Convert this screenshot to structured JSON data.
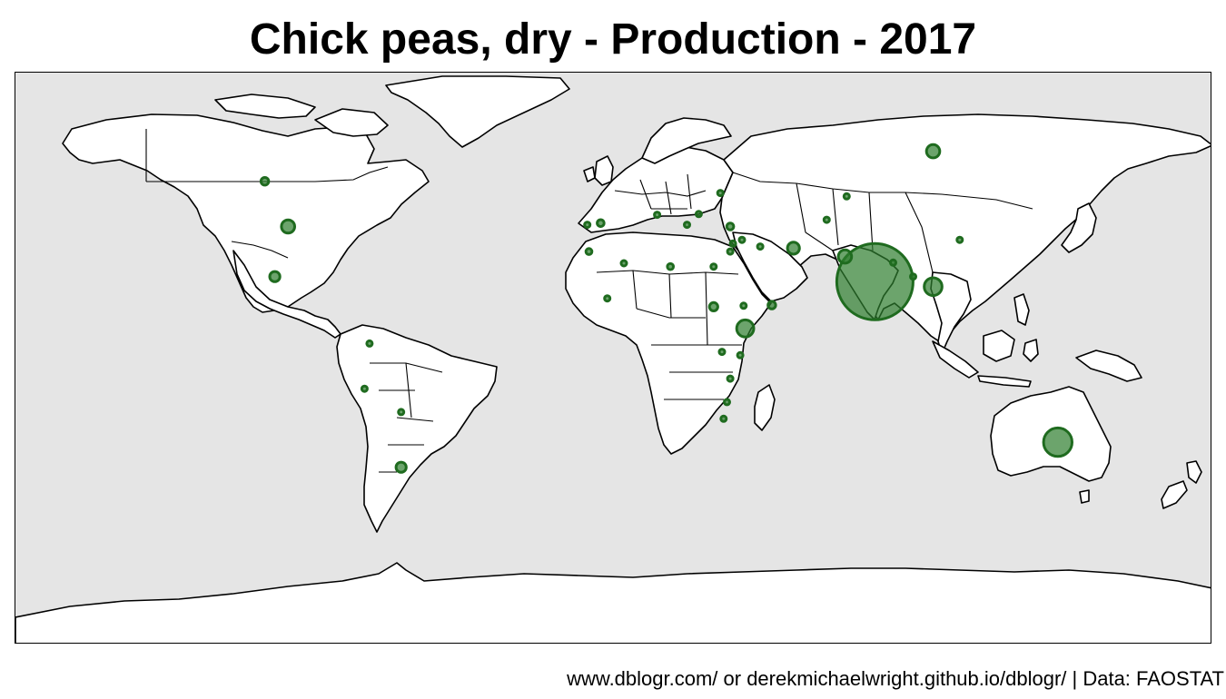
{
  "title": "Chick peas, dry - Production - 2017",
  "caption": "www.dblogr.com/ or derekmichaelwright.github.io/dblogr/ | Data: FAOSTAT",
  "colors": {
    "panel_background": "#e5e5e5",
    "land": "#ffffff",
    "outline": "#000000",
    "bubble_fill": "#2e7d2e",
    "bubble_stroke": "#1f6b1f"
  },
  "bubbles": [
    {
      "region": "India",
      "lon": 78.5,
      "lat": 22.5,
      "value": 100
    },
    {
      "region": "Australia",
      "lon": 133.5,
      "lat": -25.5,
      "value": 14
    },
    {
      "region": "Myanmar",
      "lon": 96.0,
      "lat": 21.0,
      "value": 5.5
    },
    {
      "region": "Ethiopia",
      "lon": 39.5,
      "lat": 8.5,
      "value": 5
    },
    {
      "region": "Pakistan",
      "lon": 69.5,
      "lat": 30.0,
      "value": 3
    },
    {
      "region": "Russia",
      "lon": 96.0,
      "lat": 61.5,
      "value": 3
    },
    {
      "region": "United States",
      "lon": -98.0,
      "lat": 39.0,
      "value": 3
    },
    {
      "region": "Iran",
      "lon": 54.0,
      "lat": 32.5,
      "value": 2.5
    },
    {
      "region": "Mexico",
      "lon": -102.0,
      "lat": 24.0,
      "value": 1.8
    },
    {
      "region": "Argentina",
      "lon": -64.0,
      "lat": -33.0,
      "value": 1.8
    },
    {
      "region": "Sudan",
      "lon": 30.0,
      "lat": 15.0,
      "value": 1.2
    },
    {
      "region": "Canada",
      "lon": -105.0,
      "lat": 52.5,
      "value": 1.0
    },
    {
      "region": "Yemen",
      "lon": 47.5,
      "lat": 15.5,
      "value": 1.0
    },
    {
      "region": "Spain",
      "lon": -4.0,
      "lat": 40.0,
      "value": 0.8
    },
    {
      "region": "Turkey",
      "lon": 35.0,
      "lat": 39.0,
      "value": 0.8
    },
    {
      "region": "Morocco",
      "lon": -7.5,
      "lat": 31.5,
      "value": 0.6
    },
    {
      "region": "Libya",
      "lon": 17.0,
      "lat": 27.0,
      "value": 0.6
    },
    {
      "region": "Syria",
      "lon": 38.5,
      "lat": 35.0,
      "value": 0.5
    },
    {
      "region": "Bangladesh",
      "lon": 90.0,
      "lat": 24.0,
      "value": 0.5
    },
    {
      "region": "Italy",
      "lon": 13.0,
      "lat": 42.5,
      "value": 0.4
    },
    {
      "region": "Bulgaria",
      "lon": 25.5,
      "lat": 42.7,
      "value": 0.4
    },
    {
      "region": "Ukraine",
      "lon": 32.0,
      "lat": 49.0,
      "value": 0.4
    },
    {
      "region": "Israel",
      "lon": 35.0,
      "lat": 31.5,
      "value": 0.4
    },
    {
      "region": "Tanzania",
      "lon": 35.0,
      "lat": -6.5,
      "value": 0.5
    },
    {
      "region": "Malawi",
      "lon": 34.0,
      "lat": -13.5,
      "value": 0.4
    },
    {
      "region": "Kazakhstan",
      "lon": 70.0,
      "lat": 48.0,
      "value": 0.3
    },
    {
      "region": "Uzbekistan",
      "lon": 64.0,
      "lat": 41.0,
      "value": 0.3
    },
    {
      "region": "China",
      "lon": 104.0,
      "lat": 35.0,
      "value": 0.3
    },
    {
      "region": "Nepal",
      "lon": 84.0,
      "lat": 28.2,
      "value": 0.3
    },
    {
      "region": "Egypt",
      "lon": 30.0,
      "lat": 27.0,
      "value": 0.3
    },
    {
      "region": "Algeria",
      "lon": 3.0,
      "lat": 28.0,
      "value": 0.3
    },
    {
      "region": "Mali",
      "lon": -2.0,
      "lat": 17.5,
      "value": 0.3
    },
    {
      "region": "Kenya",
      "lon": 38.0,
      "lat": 0.5,
      "value": 0.3
    },
    {
      "region": "Uganda",
      "lon": 32.5,
      "lat": 1.5,
      "value": 0.3
    },
    {
      "region": "Lebanon",
      "lon": 35.8,
      "lat": 33.9,
      "value": 0.3
    },
    {
      "region": "Iraq",
      "lon": 44.0,
      "lat": 33.0,
      "value": 0.3
    },
    {
      "region": "Peru",
      "lon": -75.0,
      "lat": -9.5,
      "value": 0.3
    },
    {
      "region": "Bolivia",
      "lon": -64.0,
      "lat": -16.5,
      "value": 0.3
    },
    {
      "region": "Colombia",
      "lon": -73.5,
      "lat": 4.0,
      "value": 0.3
    },
    {
      "region": "Portugal",
      "lon": -8.0,
      "lat": 39.5,
      "value": 0.3
    },
    {
      "region": "Greece",
      "lon": 22.0,
      "lat": 39.5,
      "value": 0.3
    },
    {
      "region": "Eritrea",
      "lon": 39.0,
      "lat": 15.3,
      "value": 0.3
    },
    {
      "region": "Malawi-Mozambique",
      "lon": 33.0,
      "lat": -18.5,
      "value": 0.3
    }
  ]
}
